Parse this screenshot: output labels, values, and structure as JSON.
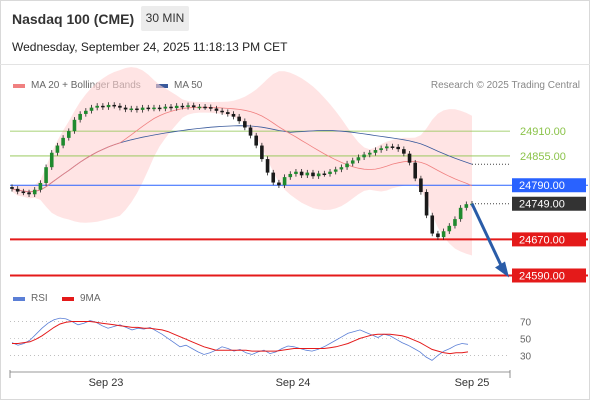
{
  "header": {
    "instrument": "Nasdaq 100 (CME)",
    "timeframe": "30 MIN",
    "datetime": "Wednesday, September 24, 2025 11:18:13 PM CET"
  },
  "legend": {
    "ma20": "MA 20 + Bollinger Bands",
    "ma50": "MA 50",
    "research": "Research © 2025 Trading Central",
    "rsi": "RSI",
    "ma9": "9MA"
  },
  "colors": {
    "candle": "#1f8a2e",
    "ma20": "#f08080",
    "bollinger_fill": "#ffd2d2",
    "ma50": "#3a5a9c",
    "resistance": "#8bc34a",
    "pivot": "#2962ff",
    "support": "#e41a1a",
    "current": "#333333",
    "arrow": "#2a5ca8",
    "rsi": "#5b7fd6",
    "rsi_ma": "#e41a1a"
  },
  "chart_data": [
    {
      "type": "line",
      "subtype": "candlestick",
      "title": "Nasdaq 100 (CME)",
      "xlabel": "",
      "ylabel": "",
      "x_ticks": [
        "Sep 23",
        "Sep 24",
        "Sep 25"
      ],
      "ylim": [
        24580,
        24990
      ],
      "candles_close_approx": [
        24782,
        24776,
        24774,
        24770,
        24780,
        24795,
        24830,
        24862,
        24878,
        24895,
        24910,
        24935,
        24948,
        24955,
        24962,
        24966,
        24963,
        24968,
        24966,
        24962,
        24958,
        24960,
        24957,
        24962,
        24960,
        24962,
        24960,
        24964,
        24961,
        24966,
        24964,
        24967,
        24963,
        24964,
        24963,
        24960,
        24955,
        24952,
        24948,
        24942,
        24932,
        24918,
        24900,
        24878,
        24848,
        24818,
        24796,
        24790,
        24808,
        24815,
        24820,
        24812,
        24818,
        24810,
        24816,
        24815,
        24820,
        24825,
        24830,
        24838,
        24845,
        24852,
        24858,
        24862,
        24868,
        24872,
        24876,
        24875,
        24870,
        24860,
        24840,
        24805,
        24775,
        24723,
        24683,
        24675,
        24688,
        24700,
        24715,
        24740,
        24748,
        24749
      ],
      "levels": [
        {
          "label": "24910.00",
          "value": 24910,
          "role": "resistance"
        },
        {
          "label": "24855.00",
          "value": 24855,
          "role": "resistance"
        },
        {
          "label": "24790.00",
          "value": 24790,
          "role": "pivot"
        },
        {
          "label": "24749.00",
          "value": 24749,
          "role": "current"
        },
        {
          "label": "24670.00",
          "value": 24670,
          "role": "support"
        },
        {
          "label": "24590.00",
          "value": 24590,
          "role": "support"
        }
      ],
      "series": [
        {
          "name": "MA 20 + Bollinger Bands",
          "role": "ma20"
        },
        {
          "name": "MA 50",
          "role": "ma50"
        }
      ]
    },
    {
      "type": "line",
      "title": "",
      "y_ticks": [
        70,
        50,
        30
      ],
      "ylim": [
        15,
        80
      ],
      "series": [
        {
          "name": "RSI",
          "values": [
            45,
            42,
            44,
            48,
            55,
            62,
            68,
            72,
            74,
            73,
            70,
            66,
            68,
            71,
            69,
            65,
            62,
            64,
            66,
            63,
            60,
            62,
            61,
            63,
            59,
            55,
            50,
            45,
            40,
            42,
            38,
            34,
            31,
            33,
            36,
            40,
            38,
            35,
            37,
            33,
            31,
            34,
            36,
            32,
            34,
            38,
            41,
            40,
            38,
            36,
            35,
            37,
            40,
            44,
            48,
            52,
            56,
            58,
            60,
            57,
            54,
            51,
            55,
            53,
            49,
            45,
            42,
            38,
            34,
            28,
            24,
            30,
            35,
            38,
            42,
            44,
            43
          ]
        },
        {
          "name": "9MA",
          "values": [
            44,
            44,
            45,
            46,
            49,
            53,
            58,
            63,
            67,
            69,
            70,
            70,
            70,
            70,
            69,
            68,
            67,
            66,
            65,
            64,
            63,
            63,
            62,
            62,
            61,
            60,
            58,
            55,
            52,
            49,
            46,
            43,
            40,
            38,
            36,
            36,
            36,
            36,
            36,
            36,
            35,
            35,
            35,
            35,
            35,
            36,
            37,
            38,
            38,
            38,
            38,
            38,
            38,
            39,
            40,
            42,
            44,
            47,
            50,
            52,
            54,
            55,
            55,
            55,
            54,
            53,
            51,
            48,
            45,
            41,
            37,
            35,
            33,
            32,
            33,
            33,
            34
          ]
        }
      ]
    }
  ]
}
